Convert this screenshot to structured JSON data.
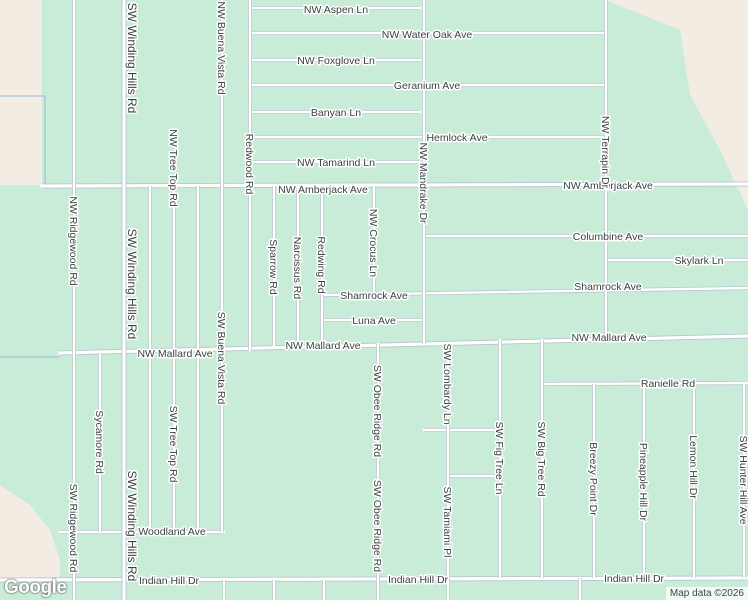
{
  "map": {
    "colors": {
      "park": "#c8ecd8",
      "land": "#f3ece2",
      "road": "#ffffff",
      "road_edge": "#b9c6cf",
      "label": "#3c4043",
      "water_line": "#9bb7d4"
    },
    "streets": {
      "nw_aspen_ln": "NW Aspen Ln",
      "nw_water_oak_ave": "NW Water Oak Ave",
      "nw_foxglove_ln": "NW Foxglove Ln",
      "geranium_ave": "Geranium Ave",
      "banyan_ln": "Banyan Ln",
      "hemlock_ave": "Hemlock Ave",
      "nw_tamarind_ln": "NW Tamarind Ln",
      "nw_amberjack_ave": "NW Amberjack Ave",
      "columbine_ave": "Columbine Ave",
      "skylark_ln": "Skylark Ln",
      "shamrock_ave": "Shamrock Ave",
      "luna_ave": "Luna Ave",
      "nw_mallard_ave": "NW Mallard Ave",
      "ranielle_rd": "Ranielle Rd",
      "woodland_ave": "Woodland Ave",
      "indian_hill_dr": "Indian Hill Dr",
      "sw_winding_hills_rd": "SW Winding Hills Rd",
      "nw_buena_vista_rd": "NW Buena Vista Rd",
      "sw_buena_vista_rd": "SW Buena Vista Rd",
      "nw_tree_top_rd": "NW Tree Top Rd",
      "sw_tree_top_rd": "SW Tree Top Rd",
      "nw_ridgewood_rd": "NW Ridgewood Rd",
      "sw_ridgewood_rd": "SW Ridgewood Rd",
      "redwood_rd": "Redwood Rd",
      "sparrow_rd": "Sparrow Rd",
      "narcissus_rd": "Narcissus Rd",
      "redwing_rd": "Redwing Rd",
      "nw_crocus_ln": "NW Crocus Ln",
      "nw_mandrake_dr": "NW Mandrake Dr",
      "nw_terrapin_dr": "NW Terrapin Dr",
      "sw_obee_ridge_rd": "SW Obee Ridge Rd",
      "sw_lombardy_ln": "SW Lombardy Ln",
      "sw_fig_tree_ln": "SW Fig Tree Ln",
      "sw_big_tree_rd": "SW Big Tree Rd",
      "breezy_point_dr": "Breezy Point Dr",
      "pineapple_hill_dr": "Pineapple Hill Dr",
      "lemon_hill_dr": "Lemon Hill Dr",
      "sw_hunter_hill_ave": "SW Hunter Hill Ave",
      "sw_tamiami_pl": "SW Tamiami Pl",
      "sycamore_rd": "Sycamore Rd"
    },
    "logo": "Google",
    "attribution": "Map data ©2026"
  }
}
